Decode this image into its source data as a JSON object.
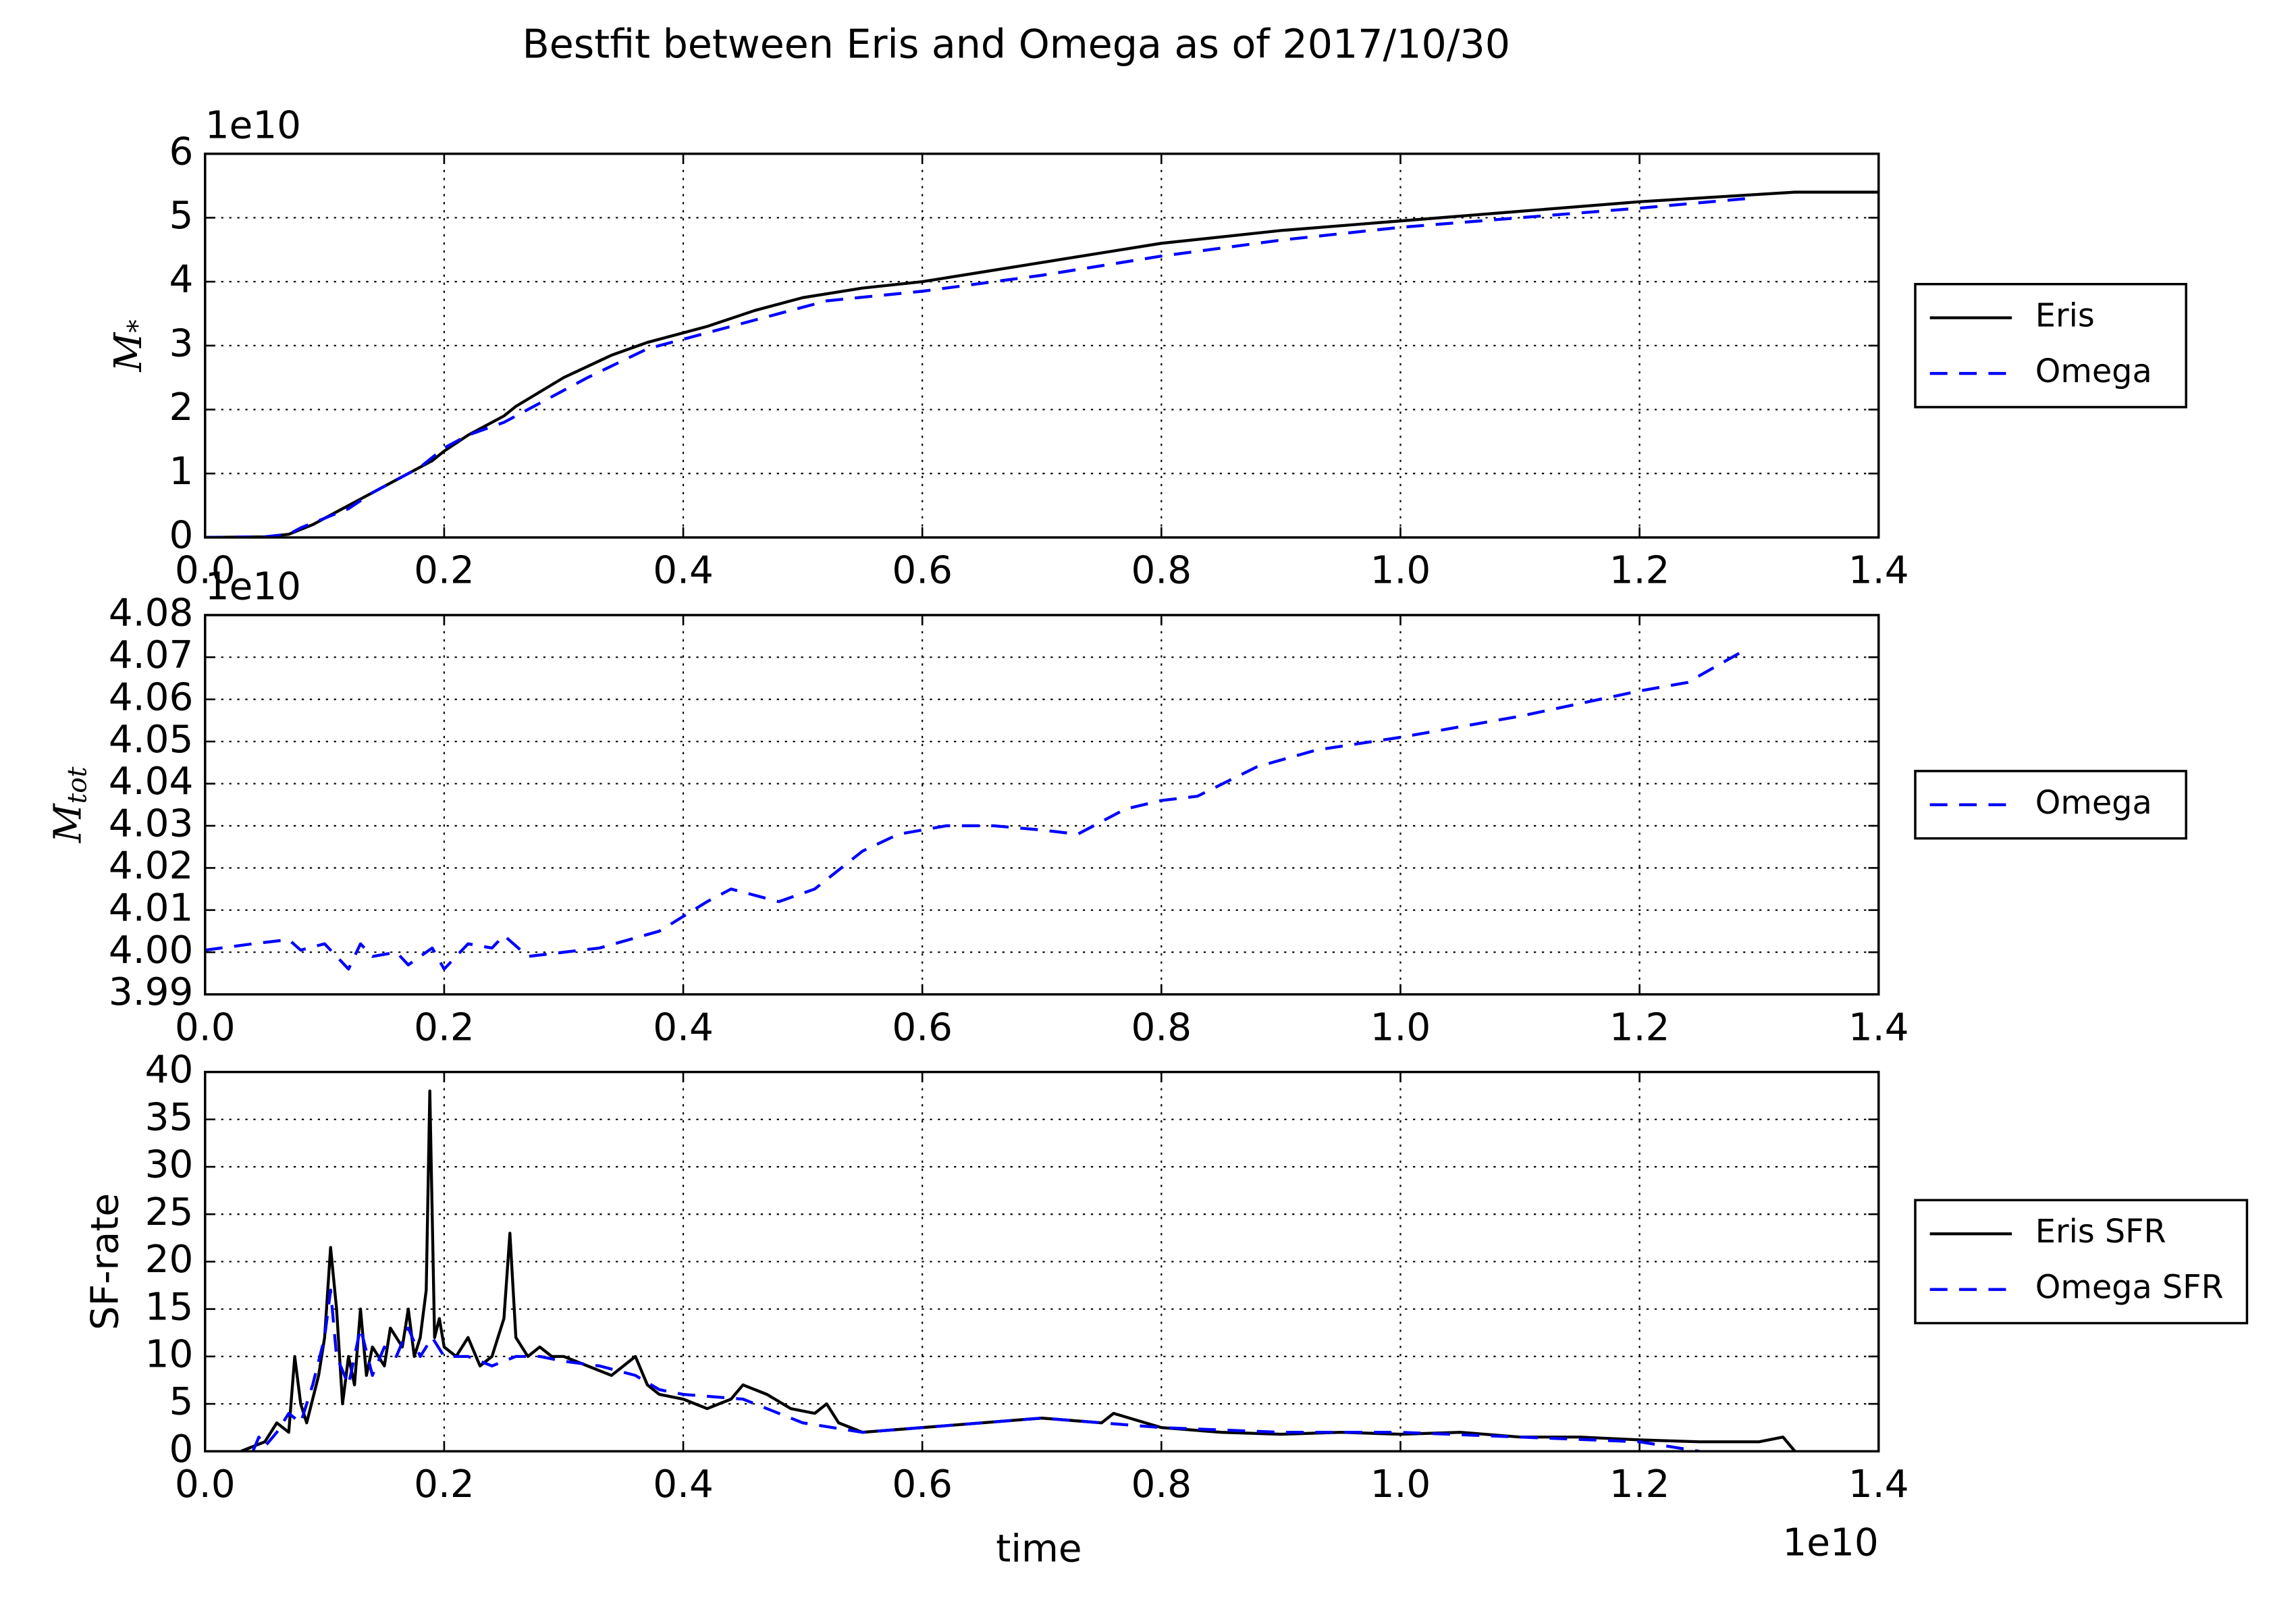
{
  "title": "Bestfit between Eris and Omega as of 2017/10/30",
  "chart_data": [
    {
      "type": "line",
      "ylabel": "M",
      "ylabel_sub": "*",
      "y_offset_label": "1e10",
      "xlim": [
        0,
        1.4
      ],
      "xticks": [
        {
          "value": 0,
          "label": "0.0"
        },
        0.2,
        0.4,
        0.6,
        0.8,
        {
          "value": 1,
          "label": "1.0"
        },
        1.2,
        1.4
      ],
      "ylim": [
        0,
        6
      ],
      "yticks": [
        0,
        1,
        2,
        3,
        4,
        5,
        6
      ],
      "grid": true,
      "legend": "outside-right",
      "series": [
        {
          "name": "Eris",
          "color": "#000000",
          "linestyle": "solid",
          "x": [
            0,
            0.05,
            0.07,
            0.09,
            0.1,
            0.11,
            0.13,
            0.15,
            0.17,
            0.19,
            0.2,
            0.22,
            0.24,
            0.25,
            0.26,
            0.3,
            0.34,
            0.37,
            0.42,
            0.46,
            0.5,
            0.55,
            0.6,
            0.65,
            0.7,
            0.75,
            0.8,
            0.9,
            1.0,
            1.1,
            1.2,
            1.33,
            1.4
          ],
          "values": [
            0,
            0.01,
            0.05,
            0.2,
            0.3,
            0.4,
            0.6,
            0.8,
            1.0,
            1.2,
            1.35,
            1.6,
            1.8,
            1.9,
            2.05,
            2.5,
            2.85,
            3.05,
            3.3,
            3.55,
            3.75,
            3.9,
            4.0,
            4.15,
            4.3,
            4.45,
            4.6,
            4.8,
            4.95,
            5.1,
            5.25,
            5.4,
            5.4
          ]
        },
        {
          "name": "Omega",
          "color": "#0000ff",
          "linestyle": "dashed",
          "x": [
            0,
            0.05,
            0.07,
            0.08,
            0.1,
            0.12,
            0.14,
            0.16,
            0.18,
            0.2,
            0.22,
            0.25,
            0.28,
            0.32,
            0.37,
            0.42,
            0.46,
            0.52,
            0.6,
            0.7,
            0.8,
            0.9,
            1.0,
            1.1,
            1.2,
            1.29
          ],
          "values": [
            0,
            0.01,
            0.05,
            0.15,
            0.3,
            0.45,
            0.7,
            0.9,
            1.1,
            1.4,
            1.6,
            1.8,
            2.1,
            2.5,
            2.95,
            3.2,
            3.4,
            3.7,
            3.85,
            4.1,
            4.4,
            4.65,
            4.85,
            5.0,
            5.15,
            5.3
          ]
        }
      ]
    },
    {
      "type": "line",
      "ylabel": "M",
      "ylabel_sub": "tot",
      "y_offset_label": "1e10",
      "xlim": [
        0,
        1.4
      ],
      "xticks": [
        {
          "value": 0,
          "label": "0.0"
        },
        0.2,
        0.4,
        0.6,
        0.8,
        {
          "value": 1,
          "label": "1.0"
        },
        1.2,
        1.4
      ],
      "ylim": [
        3.99,
        4.08
      ],
      "yticks": [
        3.99,
        {
          "value": 4,
          "label": "4.00"
        },
        4.01,
        4.02,
        4.03,
        4.04,
        4.05,
        4.06,
        4.07,
        4.08
      ],
      "grid": true,
      "legend": "outside-right",
      "series": [
        {
          "name": "Omega",
          "color": "#0000ff",
          "linestyle": "dashed",
          "x": [
            0,
            0.04,
            0.07,
            0.08,
            0.1,
            0.12,
            0.13,
            0.14,
            0.16,
            0.17,
            0.19,
            0.2,
            0.22,
            0.24,
            0.25,
            0.27,
            0.3,
            0.33,
            0.38,
            0.42,
            0.44,
            0.48,
            0.51,
            0.55,
            0.58,
            0.62,
            0.66,
            0.7,
            0.73,
            0.77,
            0.8,
            0.83,
            0.88,
            0.93,
            1.0,
            1.1,
            1.2,
            1.24,
            1.29
          ],
          "values": [
            4.0005,
            4.002,
            4.003,
            4.0005,
            4.002,
            3.996,
            4.002,
            3.999,
            4.0,
            3.997,
            4.001,
            3.996,
            4.002,
            4.001,
            4.004,
            3.999,
            4.0,
            4.001,
            4.005,
            4.012,
            4.015,
            4.012,
            4.015,
            4.024,
            4.028,
            4.03,
            4.03,
            4.029,
            4.028,
            4.034,
            4.036,
            4.037,
            4.044,
            4.048,
            4.051,
            4.056,
            4.062,
            4.064,
            4.072
          ]
        }
      ]
    },
    {
      "type": "line",
      "ylabel": "SF-rate",
      "xlabel": "time",
      "x_offset_label": "1e10",
      "xlim": [
        0,
        1.4
      ],
      "xticks": [
        {
          "value": 0,
          "label": "0.0"
        },
        0.2,
        0.4,
        0.6,
        0.8,
        {
          "value": 1,
          "label": "1.0"
        },
        1.2,
        1.4
      ],
      "ylim": [
        0,
        40
      ],
      "yticks": [
        0,
        5,
        10,
        15,
        20,
        25,
        30,
        35,
        40
      ],
      "grid": true,
      "legend": "outside-right",
      "series": [
        {
          "name": "Eris SFR",
          "color": "#000000",
          "linestyle": "solid",
          "x": [
            0.03,
            0.04,
            0.05,
            0.06,
            0.07,
            0.075,
            0.08,
            0.085,
            0.095,
            0.1,
            0.105,
            0.11,
            0.115,
            0.12,
            0.125,
            0.13,
            0.135,
            0.14,
            0.15,
            0.155,
            0.165,
            0.17,
            0.175,
            0.18,
            0.185,
            0.188,
            0.192,
            0.196,
            0.2,
            0.21,
            0.22,
            0.23,
            0.24,
            0.25,
            0.255,
            0.26,
            0.27,
            0.28,
            0.29,
            0.3,
            0.32,
            0.34,
            0.36,
            0.37,
            0.38,
            0.4,
            0.42,
            0.44,
            0.45,
            0.47,
            0.49,
            0.51,
            0.52,
            0.53,
            0.55,
            0.6,
            0.65,
            0.7,
            0.75,
            0.76,
            0.8,
            0.85,
            0.9,
            0.95,
            1.0,
            1.05,
            1.1,
            1.15,
            1.2,
            1.25,
            1.3,
            1.32,
            1.33
          ],
          "values": [
            0,
            0.5,
            1,
            3,
            2,
            10,
            5,
            3,
            8,
            12,
            21.5,
            15,
            5,
            10,
            7,
            15,
            8,
            11,
            9,
            13,
            11,
            15,
            10,
            12,
            17,
            38,
            12,
            14,
            11,
            10,
            12,
            9,
            10,
            14,
            23,
            12,
            10,
            11,
            10,
            10,
            9,
            8,
            10,
            7,
            6,
            5.5,
            4.5,
            5.5,
            7,
            6,
            4.5,
            4,
            5,
            3,
            2,
            2.5,
            3,
            3.5,
            3,
            4,
            2.5,
            2,
            1.8,
            2,
            1.8,
            2,
            1.5,
            1.5,
            1.2,
            1,
            1,
            1.5,
            0
          ]
        },
        {
          "name": "Omega SFR",
          "color": "#0000ff",
          "linestyle": "dashed",
          "x": [
            0.04,
            0.045,
            0.05,
            0.06,
            0.07,
            0.08,
            0.09,
            0.1,
            0.105,
            0.11,
            0.12,
            0.13,
            0.14,
            0.15,
            0.16,
            0.17,
            0.18,
            0.19,
            0.2,
            0.22,
            0.24,
            0.26,
            0.28,
            0.3,
            0.33,
            0.36,
            0.38,
            0.4,
            0.45,
            0.5,
            0.55,
            0.6,
            0.65,
            0.7,
            0.75,
            0.8,
            0.9,
            1.0,
            1.1,
            1.2,
            1.25
          ],
          "values": [
            0,
            1.5,
            0.5,
            2,
            4,
            3,
            7,
            12,
            17,
            10,
            7,
            13,
            8,
            11,
            10,
            13,
            10,
            12,
            10,
            10,
            9,
            10,
            10,
            9.5,
            9,
            8,
            6.5,
            6,
            5.5,
            3,
            2,
            2.5,
            3,
            3.5,
            3,
            2.5,
            2,
            2,
            1.5,
            1,
            0
          ]
        }
      ]
    }
  ]
}
